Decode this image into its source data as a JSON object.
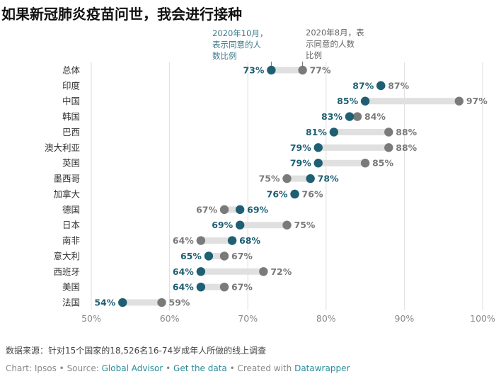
{
  "title": "如果新冠肺炎疫苗问世，我会进行接种",
  "source_note": "数据来源：针对15个国家的18,526名16-74岁成年人所做的线上调查",
  "credit": {
    "chart": "Chart: Ipsos",
    "sep": " • ",
    "source_label": "Source: ",
    "source_link": "Global Advisor",
    "get_data": "Get the data",
    "created": "Created with ",
    "tool": "Datawrapper"
  },
  "colors": {
    "oct": "#1f5f73",
    "aug": "#7a7a7a",
    "bar": "#e0e0e0",
    "grid": "#dedede"
  },
  "chart_data": {
    "type": "dot",
    "categories": [
      "总体",
      "印度",
      "中国",
      "韩国",
      "巴西",
      "澳大利亚",
      "英国",
      "墨西哥",
      "加拿大",
      "德国",
      "日本",
      "南非",
      "意大利",
      "西班牙",
      "美国",
      "法国"
    ],
    "series": [
      {
        "name": "2020年10月，表示同意的人数比例",
        "values": [
          73,
          87,
          85,
          83,
          81,
          79,
          79,
          78,
          76,
          69,
          69,
          68,
          65,
          64,
          64,
          54
        ]
      },
      {
        "name": "2020年8月，表示同意的人数比例",
        "values": [
          77,
          87,
          97,
          84,
          88,
          88,
          85,
          75,
          76,
          67,
          75,
          64,
          67,
          72,
          67,
          59
        ]
      }
    ],
    "annotations": {
      "oct": [
        "2020年10月，",
        "表示同意的人",
        "数比例"
      ],
      "aug": [
        "2020年8月，表",
        "示同意的人数",
        "比例"
      ]
    },
    "x_ticks": [
      "50%",
      "60%",
      "70%",
      "80%",
      "90%",
      "100%"
    ],
    "xlim": [
      50,
      100
    ],
    "grid": true
  }
}
